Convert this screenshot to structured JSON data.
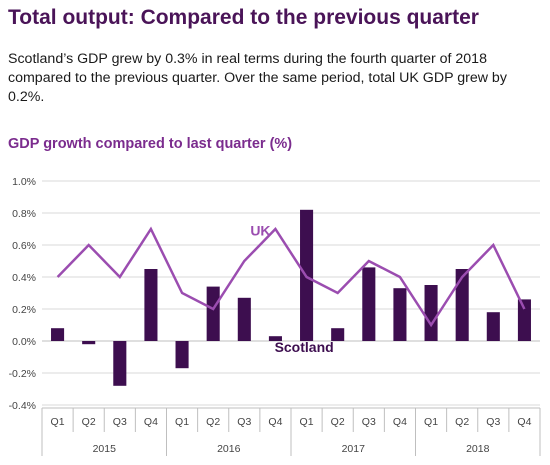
{
  "header": {
    "title": "Total output: Compared to the previous quarter",
    "body": "Scotland’s GDP grew by 0.3% in real terms during the fourth quarter of 2018 compared to the previous quarter. Over the same period, total UK GDP grew by 0.2%."
  },
  "colors": {
    "title": "#4a1458",
    "bars": "#3d0e4f",
    "uk_line": "#9b4db0",
    "chart_title": "#7b2c8e"
  },
  "chart_data": {
    "type": "bar",
    "title": "GDP growth compared to last quarter (%)",
    "xlabel": "",
    "ylabel": "",
    "ylim": [
      -0.4,
      1.0
    ],
    "yticks": [
      "-0.4%",
      "-0.2%",
      "0.0%",
      "0.2%",
      "0.4%",
      "0.6%",
      "0.8%",
      "1.0%"
    ],
    "grid": true,
    "categories": [
      "Q1",
      "Q2",
      "Q3",
      "Q4",
      "Q1",
      "Q2",
      "Q3",
      "Q4",
      "Q1",
      "Q2",
      "Q3",
      "Q4",
      "Q1",
      "Q2",
      "Q3",
      "Q4"
    ],
    "groups": [
      {
        "label": "2015",
        "start": 0,
        "count": 4
      },
      {
        "label": "2016",
        "start": 4,
        "count": 4
      },
      {
        "label": "2017",
        "start": 8,
        "count": 4
      },
      {
        "label": "2018",
        "start": 12,
        "count": 4
      }
    ],
    "series": [
      {
        "name": "Scotland",
        "type": "bar",
        "values": [
          0.08,
          -0.02,
          -0.28,
          0.45,
          -0.17,
          0.34,
          0.27,
          0.03,
          0.82,
          0.08,
          0.46,
          0.33,
          0.35,
          0.45,
          0.18,
          0.26
        ]
      },
      {
        "name": "UK",
        "type": "line",
        "values": [
          0.4,
          0.6,
          0.4,
          0.7,
          0.3,
          0.2,
          0.5,
          0.7,
          0.4,
          0.3,
          0.5,
          0.4,
          0.1,
          0.4,
          0.6,
          0.2
        ]
      }
    ]
  }
}
